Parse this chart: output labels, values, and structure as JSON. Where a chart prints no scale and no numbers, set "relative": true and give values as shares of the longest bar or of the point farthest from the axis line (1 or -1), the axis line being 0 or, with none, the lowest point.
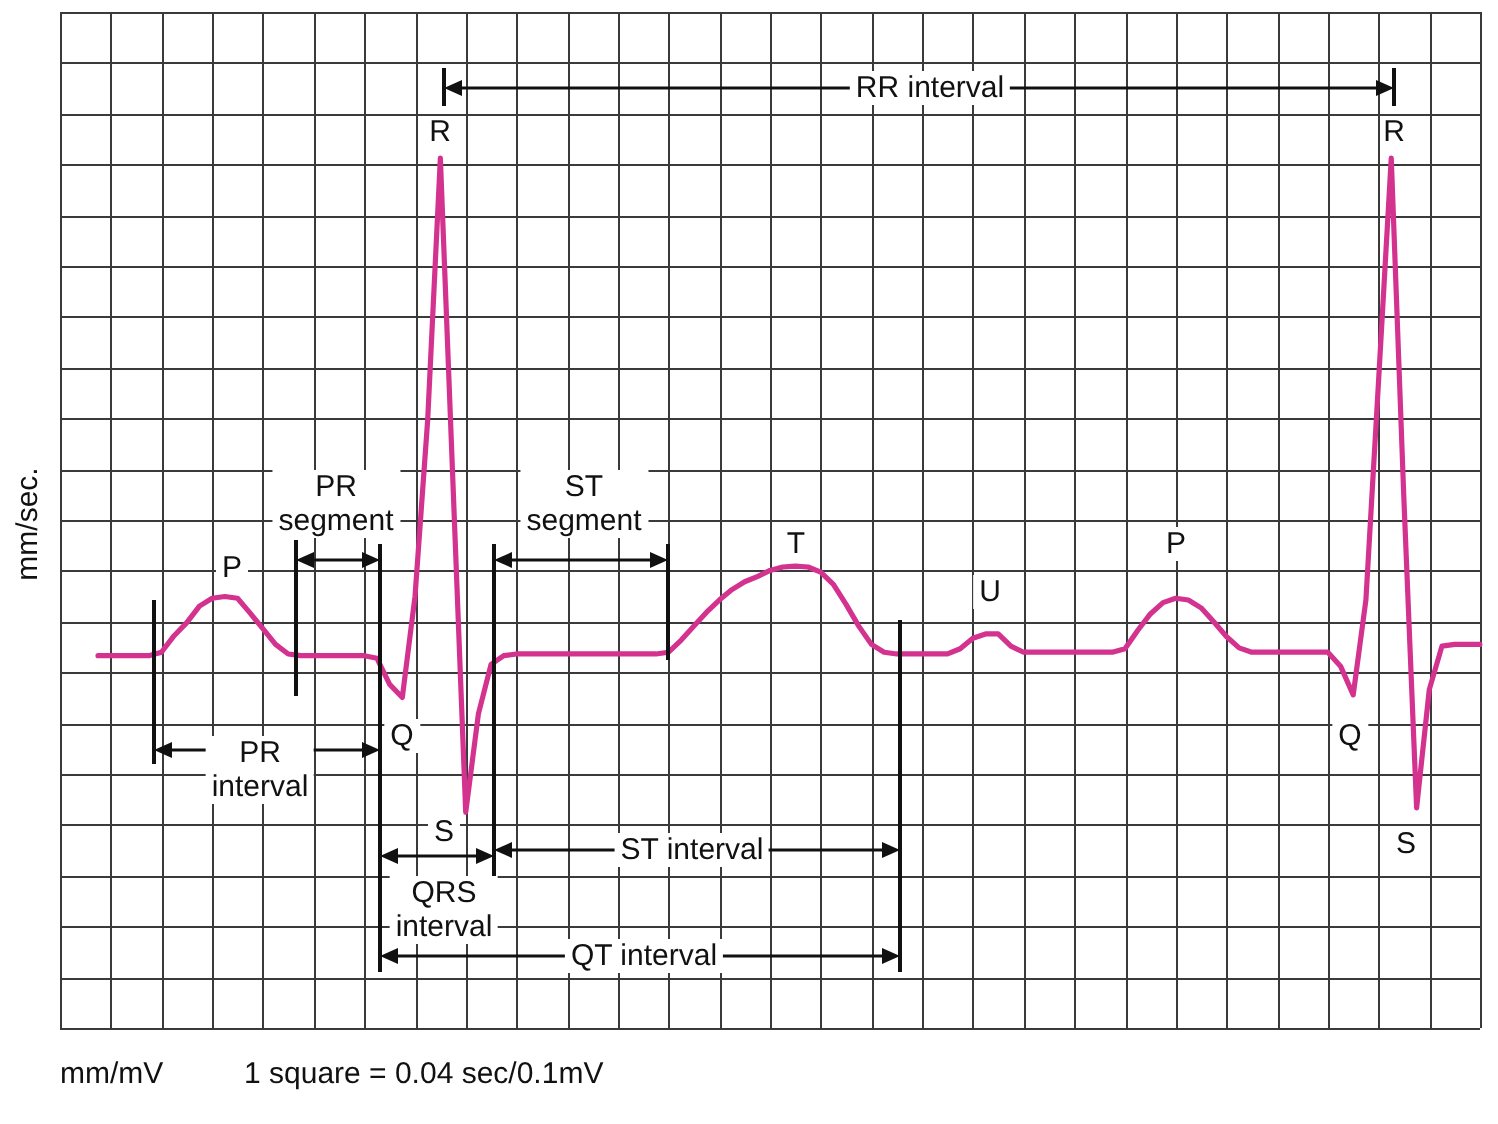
{
  "chart_data": {
    "type": "line",
    "relative": true,
    "grid": true,
    "marker": "none",
    "ylabel": "mm/sec.",
    "categories": [
      null,
      null,
      null,
      null,
      null,
      null,
      null,
      null,
      null,
      null,
      null,
      null,
      null,
      null,
      null,
      null,
      null,
      null,
      null,
      null,
      null,
      null,
      null,
      null,
      null,
      null,
      null,
      null,
      null,
      null,
      null,
      null,
      null,
      null,
      null,
      null,
      null,
      null,
      null,
      null,
      null,
      null,
      null,
      null,
      null,
      null,
      null,
      null,
      null,
      null,
      null,
      null,
      null,
      null,
      null,
      null,
      null,
      null,
      null,
      null,
      null,
      null,
      null,
      null,
      null,
      null,
      null,
      null,
      null,
      null,
      null,
      null,
      null,
      null,
      null,
      null,
      null,
      null,
      null,
      null,
      null,
      null,
      null,
      null,
      null,
      null,
      null,
      null,
      null,
      null,
      null,
      null,
      null,
      null,
      null,
      null,
      null,
      null,
      null,
      null,
      null,
      null,
      null,
      null,
      null,
      null,
      null,
      null,
      null,
      null,
      null,
      null,
      null
    ],
    "series": [
      {
        "color": "#d4328f",
        "values": [
          null,
          null,
          null,
          0.428,
          0.428,
          0.428,
          0.428,
          0.428,
          0.432,
          0.451,
          0.466,
          0.485,
          0.494,
          0.496,
          0.494,
          0.477,
          0.459,
          0.441,
          0.43,
          0.428,
          0.428,
          0.428,
          0.428,
          0.428,
          0.428,
          0.425,
          0.395,
          0.38,
          0.496,
          0.699,
          1,
          0.624,
          0.248,
          0.361,
          0.418,
          0.428,
          0.43,
          0.43,
          0.43,
          0.43,
          0.43,
          0.43,
          0.43,
          0.43,
          0.43,
          0.43,
          0.43,
          0.43,
          0.432,
          0.446,
          0.462,
          0.478,
          0.492,
          0.504,
          0.513,
          0.519,
          0.526,
          0.53,
          0.531,
          0.53,
          0.524,
          0.51,
          0.487,
          0.462,
          0.441,
          0.432,
          0.43,
          0.43,
          0.43,
          0.43,
          0.43,
          0.436,
          0.448,
          0.453,
          0.453,
          0.439,
          0.432,
          0.432,
          0.432,
          0.432,
          0.432,
          0.432,
          0.432,
          0.432,
          0.436,
          0.457,
          0.476,
          0.489,
          0.494,
          0.492,
          0.483,
          0.467,
          0.45,
          0.437,
          0.432,
          0.432,
          0.432,
          0.432,
          0.432,
          0.432,
          0.432,
          0.416,
          0.383,
          0.492,
          0.744,
          1,
          0.607,
          0.253,
          0.389,
          0.439,
          0.441,
          0.441,
          0.441
        ]
      }
    ],
    "annotations": [
      "RR interval",
      "PR segment",
      "ST segment",
      "PR interval",
      "QRS interval",
      "ST interval",
      "QT interval",
      "R",
      "R",
      "P",
      "P",
      "T",
      "U",
      "Q",
      "Q",
      "S",
      "S",
      "mm/mV",
      "1 square = 0.04 sec/0.1mV"
    ]
  }
}
